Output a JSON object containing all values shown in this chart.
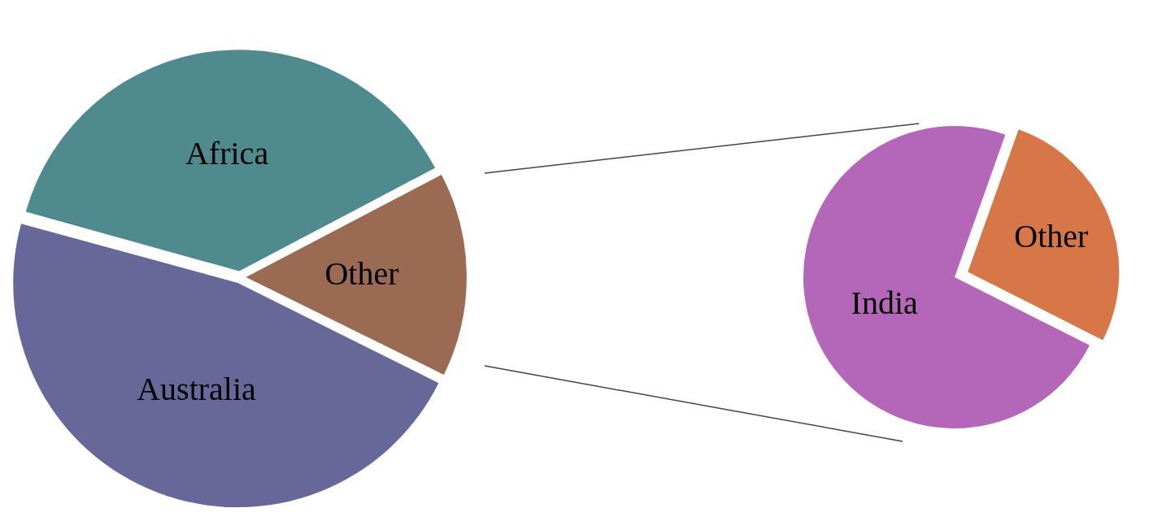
{
  "chart_data": [
    {
      "type": "pie",
      "categories": [
        "Africa",
        "Other",
        "Australia"
      ],
      "values": [
        38,
        15,
        47
      ],
      "colors": [
        "#4f8a8f",
        "#9a6b52",
        "#67689a"
      ],
      "legend": false
    },
    {
      "type": "pie",
      "categories": [
        "India",
        "Other"
      ],
      "values": [
        73,
        27
      ],
      "colors": [
        "#b466b8",
        "#d77646"
      ],
      "legend": false
    }
  ]
}
